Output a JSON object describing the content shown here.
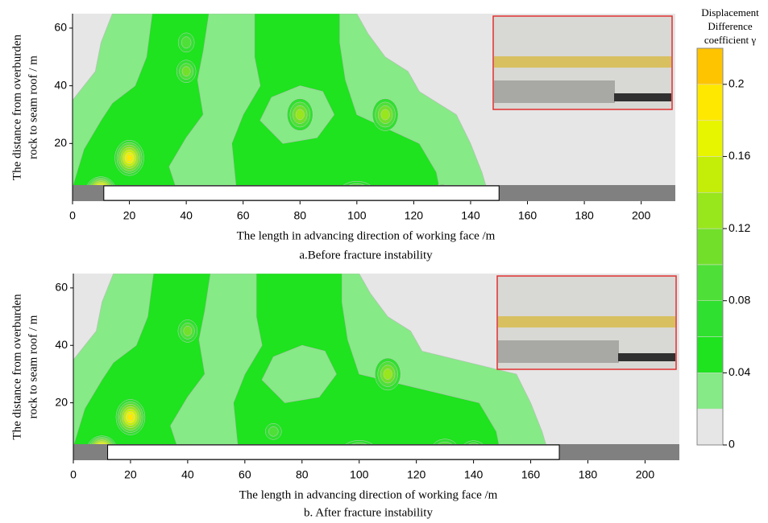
{
  "chart_data": [
    {
      "type": "contour",
      "caption": "a.Before fracture instability",
      "xlabel": "The length in advancing direction of working face /m",
      "ylabel": [
        "The distance from overburden",
        "rock to seam roof / m"
      ],
      "xlim": [
        0,
        212
      ],
      "ylim": [
        0,
        65
      ],
      "xticks": [
        0,
        20,
        40,
        60,
        80,
        100,
        120,
        140,
        160,
        180,
        200
      ],
      "yticks": [
        20,
        40,
        60
      ],
      "excavation": [
        11,
        150
      ]
    },
    {
      "type": "contour",
      "caption": "b. After fracture instability",
      "xlabel": "The length in advancing direction of working face /m",
      "ylabel": [
        "The distance from overburden",
        "rock to seam roof / m"
      ],
      "xlim": [
        0,
        212
      ],
      "ylim": [
        0,
        65
      ],
      "xticks": [
        0,
        20,
        40,
        60,
        80,
        100,
        120,
        140,
        160,
        180,
        200
      ],
      "yticks": [
        20,
        40,
        60
      ],
      "excavation": [
        12,
        170
      ]
    },
    {
      "type": "colorbar",
      "title": [
        "Displacement",
        "Difference",
        "coefficient γ"
      ],
      "levels": [
        0,
        0.02,
        0.04,
        0.06,
        0.08,
        0.1,
        0.12,
        0.14,
        0.16,
        0.18,
        0.2,
        0.22
      ],
      "colors": [
        "#e6e6e6",
        "#86ea86",
        "#1ee31e",
        "#30e030",
        "#4ee038",
        "#72e02a",
        "#98e61c",
        "#c4ee08",
        "#e8f500",
        "#ffe800",
        "#ffc400"
      ],
      "ticks": [
        0,
        0.04,
        0.08,
        0.12,
        0.16,
        0.2
      ]
    }
  ]
}
